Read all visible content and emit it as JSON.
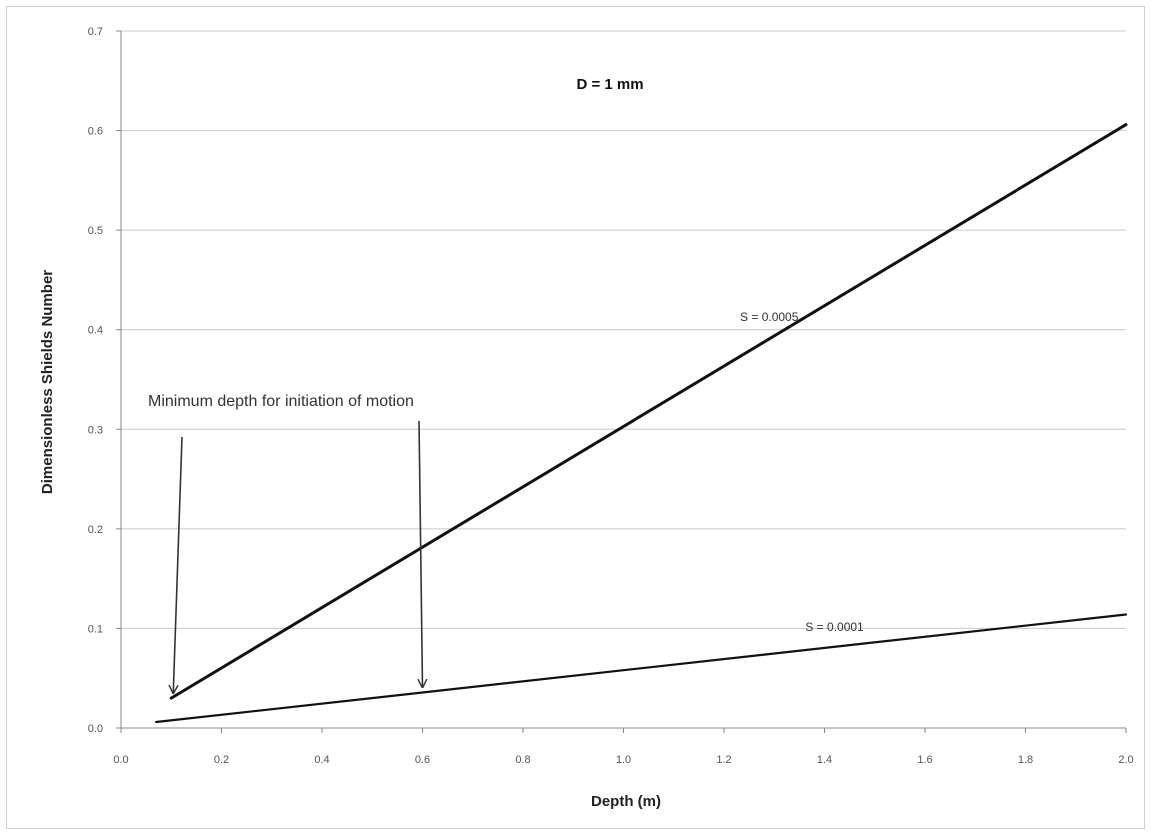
{
  "chart_data": {
    "type": "line",
    "title": "D = 1 mm",
    "xlabel": "Depth (m)",
    "ylabel": "Dimensionless Shields Number",
    "xlim": [
      0.0,
      2.0
    ],
    "ylim": [
      0.0,
      0.7
    ],
    "x_ticks": [
      "0.0",
      "0.2",
      "0.4",
      "0.6",
      "0.8",
      "1.0",
      "1.2",
      "1.4",
      "1.6",
      "1.8",
      "2.0"
    ],
    "y_ticks": [
      "0.0",
      "0.1",
      "0.2",
      "0.3",
      "0.4",
      "0.5",
      "0.6",
      "0.7"
    ],
    "grid": "horizontal",
    "series": [
      {
        "name": "S = 0.0005",
        "x": [
          0.1,
          2.0
        ],
        "y": [
          0.03,
          0.606
        ]
      },
      {
        "name": "S = 0.0001",
        "x": [
          0.07,
          2.0
        ],
        "y": [
          0.006,
          0.114
        ]
      }
    ],
    "annotations": {
      "text": "Minimum depth for initiation of motion",
      "arrow_targets": [
        {
          "x": 0.1,
          "y": 0.03
        },
        {
          "x": 0.6,
          "y": 0.036
        }
      ]
    },
    "colors": {
      "line": "#111111",
      "grid": "#c8c8c8",
      "text": "#333333"
    }
  }
}
